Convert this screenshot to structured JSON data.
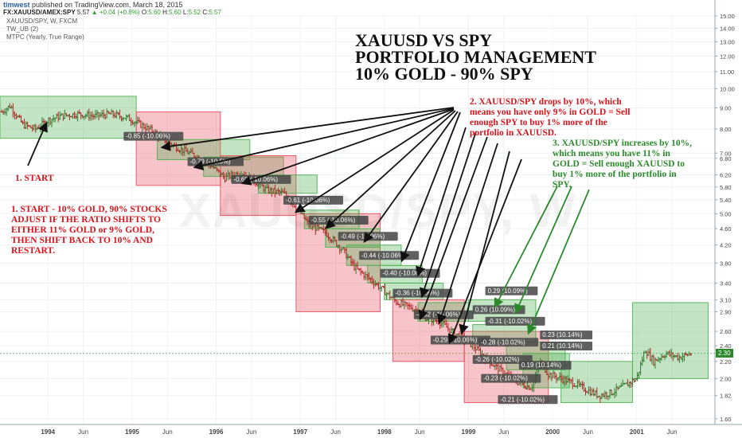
{
  "header": {
    "user": "timwest",
    "published": " published on TradingView.com, March 18, 2015"
  },
  "symbol_line": {
    "symbol": "FX:XAUUSD/AMEX:SPY",
    "last": "5.57",
    "change": "▲ +0.04 (+0.8%)",
    "o_label": "O:",
    "o": "5.60",
    "h_label": "H:",
    "h": "5.60",
    "l_label": "L:",
    "l": "5.52",
    "c_label": "C:",
    "c": "5.57"
  },
  "sub_labels": [
    "XAUUSD/SPY, W, FXCM",
    "TW_UB (2)",
    "MTPC (Yearly, True Range)"
  ],
  "title_lines": [
    "XAUUSD VS SPY",
    "PORTFOLIO MANAGEMENT",
    "10% GOLD - 90% SPY"
  ],
  "notes": {
    "start_label": "1. START",
    "note1": [
      "1. START - 10% GOLD, 90% STOCKS",
      "ADJUST IF THE RATIO SHIFTS TO",
      "EITHER 11% GOLD or 9% GOLD,",
      "THEN SHIFT BACK TO 10% AND",
      "RESTART."
    ],
    "note2": [
      "2.  XAUUSD/SPY drops by 10%, which",
      "means you have only 9% in GOLD = Sell",
      "enough SPY to buy 1% more of the",
      "portfolio in XAUUSD."
    ],
    "note3": [
      "3.  XAUUSD/SPY increases by 10%,",
      "which means you have 11% in",
      "GOLD = Sell enough XAUUSD to",
      "buy 1% more of the portfolio in",
      "SPY."
    ]
  },
  "watermark": "XAUUSD/SPY, W",
  "last_price_badge": "2.30",
  "colors": {
    "red_box": "#e84c5a",
    "green_box": "#4caf50",
    "up_bar": "#2b7a2b",
    "down_bar": "#b22222",
    "neutral_bar": "#2f3b2f",
    "note_red": "#d8141b",
    "note_green": "#2c8a2c"
  },
  "chart_data": {
    "type": "candlestick",
    "series_name": "XAUUSD/SPY, W",
    "y_scale": "log",
    "ylim": [
      1.55,
      15.0
    ],
    "y_ticks": [
      "15.00",
      "14.00",
      "13.00",
      "12.00",
      "11.00",
      "10.00",
      "9.00",
      "8.00",
      "7.00",
      "6.80",
      "6.20",
      "5.80",
      "5.40",
      "5.00",
      "4.60",
      "4.20",
      "3.80",
      "3.40",
      "3.10",
      "2.90",
      "2.60",
      "2.40",
      "2.20",
      "2.00",
      "1.82",
      "1.60"
    ],
    "x_ticks": [
      {
        "label": "1994",
        "t": 1994.0,
        "bold": true
      },
      {
        "label": "Jun",
        "t": 1994.42,
        "bold": false
      },
      {
        "label": "1995",
        "t": 1995.0,
        "bold": true
      },
      {
        "label": "Jun",
        "t": 1995.42,
        "bold": false
      },
      {
        "label": "1996",
        "t": 1996.0,
        "bold": true
      },
      {
        "label": "Jun",
        "t": 1996.42,
        "bold": false
      },
      {
        "label": "1997",
        "t": 1997.0,
        "bold": true
      },
      {
        "label": "Jun",
        "t": 1997.42,
        "bold": false
      },
      {
        "label": "1998",
        "t": 1998.0,
        "bold": true
      },
      {
        "label": "Jun",
        "t": 1998.42,
        "bold": false
      },
      {
        "label": "1999",
        "t": 1999.0,
        "bold": true
      },
      {
        "label": "Jun",
        "t": 1999.42,
        "bold": false
      },
      {
        "label": "2000",
        "t": 2000.0,
        "bold": true
      },
      {
        "label": "Jun",
        "t": 2000.42,
        "bold": false
      },
      {
        "label": "2001",
        "t": 2001.0,
        "bold": true
      },
      {
        "label": "Jun",
        "t": 2001.42,
        "bold": false
      }
    ],
    "price_path": [
      [
        1993.45,
        8.8
      ],
      [
        1993.55,
        9.1
      ],
      [
        1993.7,
        8.2
      ],
      [
        1993.85,
        8.0
      ],
      [
        1994.0,
        8.4
      ],
      [
        1994.15,
        8.6
      ],
      [
        1994.35,
        8.7
      ],
      [
        1994.55,
        8.6
      ],
      [
        1994.75,
        8.7
      ],
      [
        1994.95,
        8.5
      ],
      [
        1995.1,
        8.2
      ],
      [
        1995.25,
        7.9
      ],
      [
        1995.4,
        7.5
      ],
      [
        1995.55,
        7.2
      ],
      [
        1995.75,
        6.9
      ],
      [
        1995.95,
        6.5
      ],
      [
        1996.1,
        6.1
      ],
      [
        1996.3,
        6.3
      ],
      [
        1996.45,
        6.0
      ],
      [
        1996.6,
        5.7
      ],
      [
        1996.8,
        5.6
      ],
      [
        1996.95,
        5.2
      ],
      [
        1997.1,
        4.7
      ],
      [
        1997.3,
        4.5
      ],
      [
        1997.5,
        4.1
      ],
      [
        1997.65,
        3.7
      ],
      [
        1997.85,
        3.45
      ],
      [
        1998.0,
        3.25
      ],
      [
        1998.15,
        3.05
      ],
      [
        1998.35,
        2.95
      ],
      [
        1998.5,
        2.8
      ],
      [
        1998.65,
        2.75
      ],
      [
        1998.8,
        2.6
      ],
      [
        1999.0,
        2.45
      ],
      [
        1999.15,
        2.3
      ],
      [
        1999.3,
        2.15
      ],
      [
        1999.45,
        2.05
      ],
      [
        1999.6,
        1.95
      ],
      [
        1999.75,
        1.9
      ],
      [
        1999.85,
        2.2
      ],
      [
        1999.95,
        2.05
      ],
      [
        2000.1,
        2.0
      ],
      [
        2000.25,
        1.95
      ],
      [
        2000.4,
        1.88
      ],
      [
        2000.55,
        1.82
      ],
      [
        2000.7,
        1.85
      ],
      [
        2000.85,
        1.92
      ],
      [
        2001.0,
        2.0
      ],
      [
        2001.1,
        2.35
      ],
      [
        2001.2,
        2.2
      ],
      [
        2001.35,
        2.3
      ],
      [
        2001.5,
        2.25
      ],
      [
        2001.65,
        2.3
      ]
    ],
    "boxes": [
      {
        "color": "green",
        "t0": 1993.43,
        "t1": 1995.05,
        "p0": 7.6,
        "p1": 9.6
      },
      {
        "color": "red",
        "t0": 1995.05,
        "t1": 1996.05,
        "p0": 5.85,
        "p1": 8.8
      },
      {
        "color": "green",
        "t0": 1995.3,
        "t1": 1996.4,
        "p0": 6.75,
        "p1": 7.55
      },
      {
        "color": "green",
        "t0": 1995.85,
        "t1": 1996.8,
        "p0": 6.15,
        "p1": 6.85
      },
      {
        "color": "red",
        "t0": 1996.05,
        "t1": 1996.95,
        "p0": 4.95,
        "p1": 6.9
      },
      {
        "color": "green",
        "t0": 1996.5,
        "t1": 1997.2,
        "p0": 5.6,
        "p1": 6.2
      },
      {
        "color": "red",
        "t0": 1996.95,
        "t1": 1997.95,
        "p0": 2.9,
        "p1": 5.0
      },
      {
        "color": "green",
        "t0": 1997.05,
        "t1": 1997.7,
        "p0": 4.6,
        "p1": 5.1
      },
      {
        "color": "green",
        "t0": 1997.3,
        "t1": 1997.95,
        "p0": 4.15,
        "p1": 4.6
      },
      {
        "color": "green",
        "t0": 1997.55,
        "t1": 1998.2,
        "p0": 3.75,
        "p1": 4.2
      },
      {
        "color": "green",
        "t0": 1997.8,
        "t1": 1998.45,
        "p0": 3.4,
        "p1": 3.75
      },
      {
        "color": "green",
        "t0": 1998.0,
        "t1": 1998.7,
        "p0": 3.1,
        "p1": 3.4
      },
      {
        "color": "red",
        "t0": 1998.1,
        "t1": 1998.95,
        "p0": 2.2,
        "p1": 3.1
      },
      {
        "color": "green",
        "t0": 1998.4,
        "t1": 1999.0,
        "p0": 2.75,
        "p1": 3.05
      },
      {
        "color": "green",
        "t0": 1999.0,
        "t1": 1999.8,
        "p0": 2.75,
        "p1": 3.1
      },
      {
        "color": "red",
        "t0": 1998.95,
        "t1": 1999.95,
        "p0": 1.75,
        "p1": 2.6
      },
      {
        "color": "green",
        "t0": 1999.05,
        "t1": 1999.8,
        "p0": 2.45,
        "p1": 2.7
      },
      {
        "color": "green",
        "t0": 1999.45,
        "t1": 2000.15,
        "p0": 2.1,
        "p1": 2.45
      },
      {
        "color": "green",
        "t0": 1999.65,
        "t1": 2000.2,
        "p0": 1.9,
        "p1": 2.3
      },
      {
        "color": "green",
        "t0": 2000.1,
        "t1": 2000.95,
        "p0": 1.75,
        "p1": 2.2
      },
      {
        "color": "green",
        "t0": 2000.95,
        "t1": 2001.85,
        "p0": 2.0,
        "p1": 3.05
      }
    ],
    "change_labels": [
      {
        "text": "-0.85 (-10.06%)",
        "t": 1994.9,
        "p": 7.6
      },
      {
        "text": "-0.79 (-10.5%)",
        "t": 1995.66,
        "p": 6.6
      },
      {
        "text": "-0.68 (-10.06%)",
        "t": 1996.18,
        "p": 5.98
      },
      {
        "text": "-0.61 (-10.06%)",
        "t": 1996.8,
        "p": 5.33
      },
      {
        "text": "-0.55 (-10.06%)",
        "t": 1997.1,
        "p": 4.77
      },
      {
        "text": "-0.49 (-10.06%)",
        "t": 1997.45,
        "p": 4.36
      },
      {
        "text": "-0.44 (-10.06%)",
        "t": 1997.7,
        "p": 3.92
      },
      {
        "text": "-0.40 (-10.06%)",
        "t": 1997.95,
        "p": 3.55
      },
      {
        "text": "-0.36 (-10.06%)",
        "t": 1998.1,
        "p": 3.18
      },
      {
        "text": "-0.32 (-10.06%)",
        "t": 1998.35,
        "p": 2.82
      },
      {
        "text": "-0.29 (-10.06%)",
        "t": 1998.55,
        "p": 2.45
      },
      {
        "text": "0.29 (10.09%)",
        "t": 1999.2,
        "p": 3.22
      },
      {
        "text": "0.26 (10.09%)",
        "t": 1999.05,
        "p": 2.9
      },
      {
        "text": "-0.31 (-10.02%)",
        "t": 1999.2,
        "p": 2.72
      },
      {
        "text": "0.23 (10.14%)",
        "t": 1999.85,
        "p": 2.52
      },
      {
        "text": "-0.28 (-10.02%)",
        "t": 1999.12,
        "p": 2.42
      },
      {
        "text": "0.21 (10.14%)",
        "t": 1999.85,
        "p": 2.37
      },
      {
        "text": "-0.26 (-10.02%)",
        "t": 1999.05,
        "p": 2.2
      },
      {
        "text": "0.19 (10.14%)",
        "t": 1999.6,
        "p": 2.13
      },
      {
        "text": "-0.23 (-10.02%)",
        "t": 1999.15,
        "p": 1.98
      },
      {
        "text": "-0.21 (-10.02%)",
        "t": 1999.35,
        "p": 1.76
      }
    ],
    "arrows": [
      {
        "color": "black",
        "from": [
          35,
          208
        ],
        "to": [
          58,
          155
        ]
      },
      {
        "color": "black",
        "from": [
          570,
          135
        ],
        "to": [
          204,
          185
        ]
      },
      {
        "color": "black",
        "from": [
          570,
          136
        ],
        "to": [
          245,
          210
        ]
      },
      {
        "color": "black",
        "from": [
          570,
          137
        ],
        "to": [
          305,
          230
        ]
      },
      {
        "color": "black",
        "from": [
          570,
          138
        ],
        "to": [
          372,
          266
        ]
      },
      {
        "color": "black",
        "from": [
          572,
          139
        ],
        "to": [
          410,
          286
        ]
      },
      {
        "color": "black",
        "from": [
          575,
          140
        ],
        "to": [
          458,
          303
        ]
      },
      {
        "color": "black",
        "from": [
          578,
          141
        ],
        "to": [
          505,
          327
        ]
      },
      {
        "color": "black",
        "from": [
          585,
          160
        ],
        "to": [
          525,
          345
        ]
      },
      {
        "color": "black",
        "from": [
          598,
          165
        ],
        "to": [
          530,
          372
        ]
      },
      {
        "color": "black",
        "from": [
          612,
          172
        ],
        "to": [
          528,
          400
        ]
      },
      {
        "color": "black",
        "from": [
          625,
          180
        ],
        "to": [
          552,
          405
        ]
      },
      {
        "color": "black",
        "from": [
          640,
          190
        ],
        "to": [
          580,
          418
        ]
      },
      {
        "color": "black",
        "from": [
          655,
          200
        ],
        "to": [
          565,
          430
        ]
      },
      {
        "color": "green",
        "from": [
          700,
          234
        ],
        "to": [
          622,
          385
        ]
      },
      {
        "color": "green",
        "from": [
          718,
          234
        ],
        "to": [
          648,
          392
        ]
      },
      {
        "color": "green",
        "from": [
          740,
          238
        ],
        "to": [
          664,
          418
        ]
      }
    ]
  }
}
